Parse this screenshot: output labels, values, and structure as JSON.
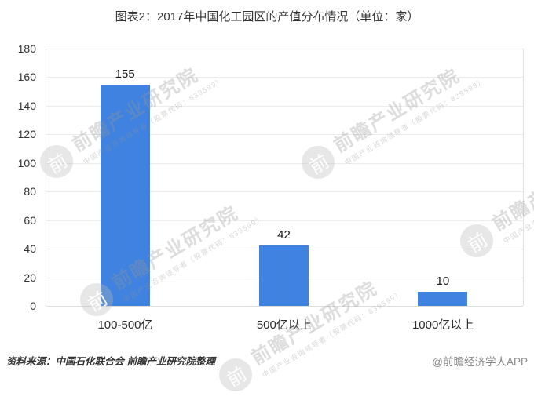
{
  "title": "图表2：2017年中国化工园区的产值分布情况（单位：家）",
  "footer": {
    "source": "资料来源：中国石化联合会 前瞻产业研究院整理",
    "brand": "@前瞻经济学人APP"
  },
  "watermark": {
    "logo_glyph": "前",
    "text": "前瞻产业研究院",
    "subtext": "中国产业咨询领导者（股票代码：839599）"
  },
  "chart_data": {
    "type": "bar",
    "title": "图表2：2017年中国化工园区的产值分布情况（单位：家）",
    "categories": [
      "100-500亿",
      "500亿以上",
      "1000亿以上"
    ],
    "values": [
      155,
      42,
      10
    ],
    "xlabel": "",
    "ylabel": "",
    "unit": "家",
    "ylim": [
      0,
      180
    ],
    "ytick_step": 20,
    "grid": true,
    "legend": false,
    "bar_color": "#4082DF",
    "gridline_color": "#ececec",
    "label_color": "#1a1a1a"
  }
}
